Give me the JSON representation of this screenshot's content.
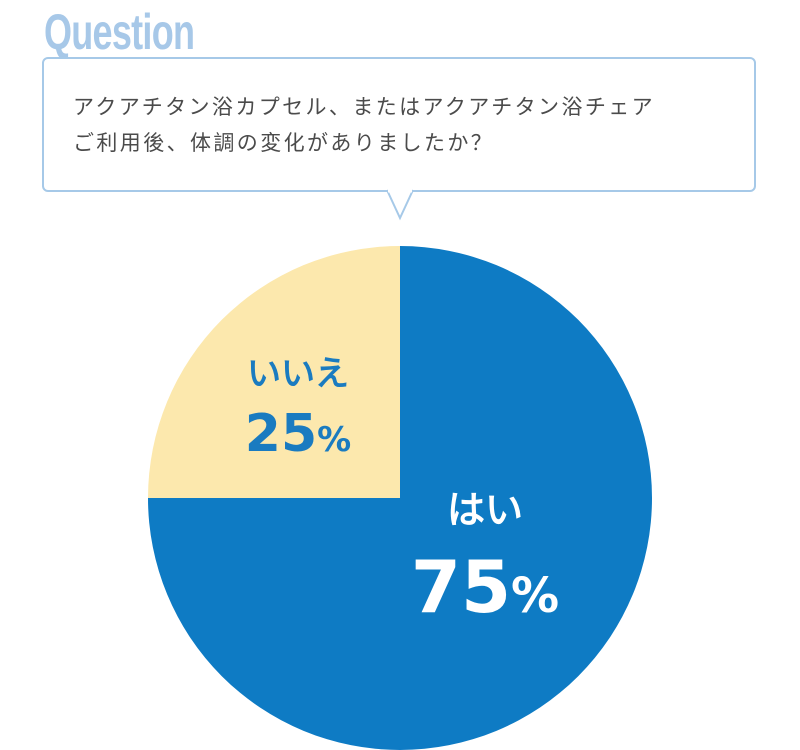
{
  "heading": "Question",
  "question": {
    "line1": "アクアチタン浴カプセル、またはアクアチタン浴チェア",
    "line2": "ご利用後、体調の変化がありましたか？"
  },
  "colors": {
    "heading": "#a7c8e8",
    "bubble_border": "#a6c9e8",
    "yes": "#0e7bc4",
    "no": "#fce8ad",
    "yes_text": "#ffffff",
    "no_text": "#1a7bc0"
  },
  "chart_data": {
    "type": "pie",
    "categories": [
      "はい",
      "いいえ"
    ],
    "values": [
      75,
      25
    ],
    "value_labels": [
      "75%",
      "25%"
    ],
    "title": "",
    "legend": "none"
  }
}
